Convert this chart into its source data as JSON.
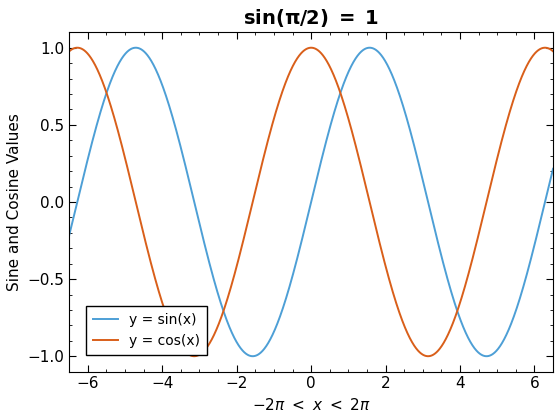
{
  "title": "$\\mathbf{sin(\\pi/2)\\ =\\ 1}$",
  "xlabel": "$-2\\pi\\ <\\ x\\ <\\ 2\\pi$",
  "ylabel": "Sine and Cosine Values",
  "xlim": [
    -6.5,
    6.5
  ],
  "ylim": [
    -1.1,
    1.1
  ],
  "xticks": [
    -6,
    -4,
    -2,
    0,
    2,
    4,
    6
  ],
  "yticks": [
    -1,
    -0.5,
    0,
    0.5,
    1
  ],
  "sin_color": "#4D9FD6",
  "cos_color": "#D95F1A",
  "sin_label": "y = sin(x)",
  "cos_label": "y = cos(x)",
  "linewidth": 1.4,
  "title_fontsize": 14,
  "label_fontsize": 11,
  "tick_fontsize": 11,
  "legend_fontsize": 10,
  "background_color": "#ffffff",
  "figsize": [
    5.6,
    4.2
  ],
  "dpi": 100
}
